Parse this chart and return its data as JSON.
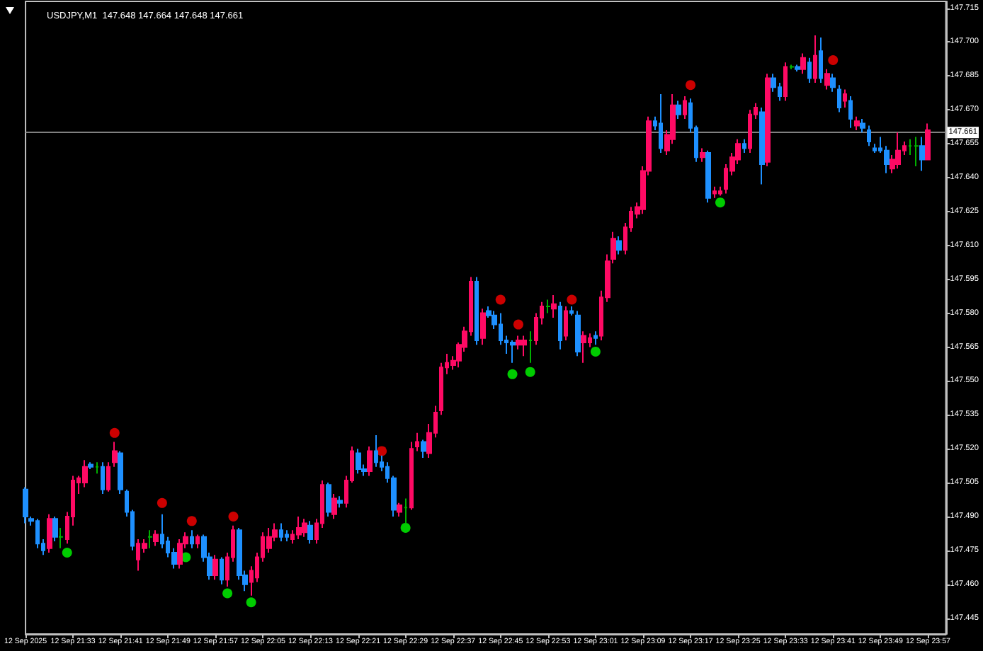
{
  "chart_data": {
    "type": "candlestick",
    "title": "USDJPY,M1  147.648 147.664 147.648 147.661",
    "x": [
      "2025-09-12T21:25",
      "2025-09-12T21:26",
      "2025-09-12T21:27",
      "2025-09-12T21:28",
      "2025-09-12T21:29",
      "2025-09-12T21:30",
      "2025-09-12T21:31",
      "2025-09-12T21:32",
      "2025-09-12T21:33",
      "2025-09-12T21:34",
      "2025-09-12T21:35",
      "2025-09-12T21:36",
      "2025-09-12T21:37",
      "2025-09-12T21:38",
      "2025-09-12T21:39",
      "2025-09-12T21:40",
      "2025-09-12T21:41",
      "2025-09-12T21:42",
      "2025-09-12T21:43",
      "2025-09-12T21:44",
      "2025-09-12T21:45",
      "2025-09-12T21:46",
      "2025-09-12T21:47",
      "2025-09-12T21:48",
      "2025-09-12T21:49",
      "2025-09-12T21:50",
      "2025-09-12T21:51",
      "2025-09-12T21:52",
      "2025-09-12T21:53",
      "2025-09-12T21:54",
      "2025-09-12T21:55",
      "2025-09-12T21:56",
      "2025-09-12T21:57",
      "2025-09-12T21:58",
      "2025-09-12T21:59",
      "2025-09-12T22:00",
      "2025-09-12T22:01",
      "2025-09-12T22:02",
      "2025-09-12T22:03",
      "2025-09-12T22:04",
      "2025-09-12T22:05",
      "2025-09-12T22:06",
      "2025-09-12T22:07",
      "2025-09-12T22:08",
      "2025-09-12T22:09",
      "2025-09-12T22:10",
      "2025-09-12T22:11",
      "2025-09-12T22:12",
      "2025-09-12T22:13",
      "2025-09-12T22:14",
      "2025-09-12T22:15",
      "2025-09-12T22:16",
      "2025-09-12T22:17",
      "2025-09-12T22:18",
      "2025-09-12T22:19",
      "2025-09-12T22:20",
      "2025-09-12T22:21",
      "2025-09-12T22:22",
      "2025-09-12T22:23",
      "2025-09-12T22:24",
      "2025-09-12T22:25",
      "2025-09-12T22:26",
      "2025-09-12T22:27",
      "2025-09-12T22:28",
      "2025-09-12T22:29",
      "2025-09-12T22:30",
      "2025-09-12T22:31",
      "2025-09-12T22:32",
      "2025-09-12T22:33",
      "2025-09-12T22:34",
      "2025-09-12T22:35",
      "2025-09-12T22:36",
      "2025-09-12T22:37",
      "2025-09-12T22:38",
      "2025-09-12T22:39",
      "2025-09-12T22:40",
      "2025-09-12T22:41",
      "2025-09-12T22:42",
      "2025-09-12T22:43",
      "2025-09-12T22:44",
      "2025-09-12T22:45",
      "2025-09-12T22:46",
      "2025-09-12T22:47",
      "2025-09-12T22:48",
      "2025-09-12T22:49",
      "2025-09-12T22:50",
      "2025-09-12T22:51",
      "2025-09-12T22:52",
      "2025-09-12T22:53",
      "2025-09-12T22:54",
      "2025-09-12T22:55",
      "2025-09-12T22:56",
      "2025-09-12T22:57",
      "2025-09-12T22:58",
      "2025-09-12T22:59",
      "2025-09-12T23:00",
      "2025-09-12T23:01",
      "2025-09-12T23:02",
      "2025-09-12T23:03",
      "2025-09-12T23:04",
      "2025-09-12T23:05",
      "2025-09-12T23:06",
      "2025-09-12T23:07",
      "2025-09-12T23:08",
      "2025-09-12T23:09",
      "2025-09-12T23:10",
      "2025-09-12T23:11",
      "2025-09-12T23:12",
      "2025-09-12T23:13",
      "2025-09-12T23:14",
      "2025-09-12T23:15",
      "2025-09-12T23:16",
      "2025-09-12T23:17",
      "2025-09-12T23:18",
      "2025-09-12T23:19",
      "2025-09-12T23:20",
      "2025-09-12T23:21",
      "2025-09-12T23:22",
      "2025-09-12T23:23",
      "2025-09-12T23:24",
      "2025-09-12T23:25",
      "2025-09-12T23:26",
      "2025-09-12T23:27",
      "2025-09-12T23:28",
      "2025-09-12T23:29",
      "2025-09-12T23:30",
      "2025-09-12T23:31",
      "2025-09-12T23:32",
      "2025-09-12T23:33",
      "2025-09-12T23:34",
      "2025-09-12T23:35",
      "2025-09-12T23:36",
      "2025-09-12T23:37",
      "2025-09-12T23:38",
      "2025-09-12T23:39",
      "2025-09-12T23:40",
      "2025-09-12T23:41",
      "2025-09-12T23:42",
      "2025-09-12T23:43",
      "2025-09-12T23:44",
      "2025-09-12T23:45",
      "2025-09-12T23:46",
      "2025-09-12T23:47",
      "2025-09-12T23:48",
      "2025-09-12T23:49",
      "2025-09-12T23:50",
      "2025-09-12T23:51",
      "2025-09-12T23:52",
      "2025-09-12T23:53",
      "2025-09-12T23:54",
      "2025-09-12T23:55",
      "2025-09-12T23:56",
      "2025-09-12T23:57"
    ],
    "ohlc": [
      [
        147.502,
        147.503,
        147.487,
        147.49
      ],
      [
        147.489,
        147.49,
        147.486,
        147.488
      ],
      [
        147.488,
        147.489,
        147.476,
        147.478
      ],
      [
        147.478,
        147.48,
        147.473,
        147.475
      ],
      [
        147.476,
        147.491,
        147.474,
        147.489
      ],
      [
        147.489,
        147.49,
        147.479,
        147.481
      ],
      [
        147.481,
        147.485,
        147.476,
        147.481
      ],
      [
        147.48,
        147.492,
        147.478,
        147.49
      ],
      [
        147.49,
        147.508,
        147.486,
        147.506
      ],
      [
        147.505,
        147.508,
        147.5,
        147.507
      ],
      [
        147.505,
        147.515,
        147.503,
        147.512
      ],
      [
        147.513,
        147.514,
        147.511,
        147.512
      ],
      [
        147.512,
        147.514,
        147.509,
        147.512
      ],
      [
        147.512,
        147.514,
        147.5,
        147.502
      ],
      [
        147.502,
        147.514,
        147.501,
        147.512
      ],
      [
        147.514,
        147.523,
        147.512,
        147.519
      ],
      [
        147.518,
        147.519,
        147.5,
        147.502
      ],
      [
        147.501,
        147.502,
        147.49,
        147.492
      ],
      [
        147.492,
        147.493,
        147.475,
        147.477
      ],
      [
        147.471,
        147.48,
        147.466,
        147.478
      ],
      [
        147.476,
        147.48,
        147.474,
        147.478
      ],
      [
        147.481,
        147.484,
        147.476,
        147.481
      ],
      [
        147.479,
        147.484,
        147.477,
        147.482
      ],
      [
        147.482,
        147.491,
        147.476,
        147.478
      ],
      [
        147.479,
        147.481,
        147.472,
        147.474
      ],
      [
        147.474,
        147.476,
        147.467,
        147.469
      ],
      [
        147.469,
        147.48,
        147.467,
        147.478
      ],
      [
        147.478,
        147.483,
        147.476,
        147.481
      ],
      [
        147.481,
        147.484,
        147.476,
        147.478
      ],
      [
        147.478,
        147.482,
        147.476,
        147.481
      ],
      [
        147.481,
        147.482,
        147.47,
        147.472
      ],
      [
        147.472,
        147.474,
        147.462,
        147.464
      ],
      [
        147.464,
        147.473,
        147.462,
        147.471
      ],
      [
        147.471,
        147.472,
        147.46,
        147.462
      ],
      [
        147.462,
        147.474,
        147.459,
        147.472
      ],
      [
        147.472,
        147.486,
        147.47,
        147.484
      ],
      [
        147.484,
        147.485,
        147.462,
        147.464
      ],
      [
        147.464,
        147.466,
        147.457,
        147.46
      ],
      [
        147.461,
        147.468,
        147.455,
        147.466
      ],
      [
        147.463,
        147.474,
        147.461,
        147.472
      ],
      [
        147.472,
        147.483,
        147.47,
        147.481
      ],
      [
        147.476,
        147.485,
        147.474,
        147.481
      ],
      [
        147.481,
        147.487,
        147.479,
        147.484
      ],
      [
        147.484,
        147.487,
        147.479,
        147.481
      ],
      [
        147.482,
        147.484,
        147.479,
        147.481
      ],
      [
        147.48,
        147.484,
        147.478,
        147.482
      ],
      [
        147.482,
        147.49,
        147.48,
        147.485
      ],
      [
        147.483,
        147.489,
        147.481,
        147.487
      ],
      [
        147.486,
        147.488,
        147.478,
        147.48
      ],
      [
        147.48,
        147.489,
        147.478,
        147.487
      ],
      [
        147.487,
        147.506,
        147.485,
        147.504
      ],
      [
        147.504,
        147.505,
        147.49,
        147.492
      ],
      [
        147.491,
        147.5,
        147.489,
        147.498
      ],
      [
        147.497,
        147.499,
        147.494,
        147.496
      ],
      [
        147.496,
        147.508,
        147.494,
        147.506
      ],
      [
        147.506,
        147.521,
        147.505,
        147.519
      ],
      [
        147.518,
        147.52,
        147.509,
        147.511
      ],
      [
        147.511,
        147.513,
        147.508,
        147.51
      ],
      [
        147.51,
        147.521,
        147.508,
        147.519
      ],
      [
        147.519,
        147.526,
        147.512,
        147.514
      ],
      [
        147.514,
        147.517,
        147.51,
        147.512
      ],
      [
        147.512,
        147.514,
        147.505,
        147.507
      ],
      [
        147.507,
        147.508,
        147.49,
        147.493
      ],
      [
        147.492,
        147.496,
        147.49,
        147.495
      ],
      [
        147.494,
        147.498,
        147.487,
        147.494
      ],
      [
        147.494,
        147.523,
        147.493,
        147.52
      ],
      [
        147.521,
        147.527,
        147.519,
        147.523
      ],
      [
        147.523,
        147.524,
        147.516,
        147.519
      ],
      [
        147.518,
        147.531,
        147.516,
        147.527
      ],
      [
        147.527,
        147.539,
        147.525,
        147.536
      ],
      [
        147.537,
        147.558,
        147.535,
        147.556
      ],
      [
        147.556,
        147.562,
        147.553,
        147.558
      ],
      [
        147.557,
        147.561,
        147.555,
        147.559
      ],
      [
        147.559,
        147.567,
        147.556,
        147.566
      ],
      [
        147.565,
        147.574,
        147.563,
        147.572
      ],
      [
        147.572,
        147.596,
        147.57,
        147.594
      ],
      [
        147.594,
        147.596,
        147.566,
        147.568
      ],
      [
        147.569,
        147.582,
        147.566,
        147.58
      ],
      [
        147.581,
        147.583,
        147.578,
        147.579
      ],
      [
        147.579,
        147.581,
        147.573,
        147.575
      ],
      [
        147.575,
        147.58,
        147.566,
        147.568
      ],
      [
        147.568,
        147.57,
        147.562,
        147.567
      ],
      [
        147.567,
        147.568,
        147.558,
        147.566
      ],
      [
        147.566,
        147.57,
        147.564,
        147.568
      ],
      [
        147.566,
        147.57,
        147.561,
        147.568
      ],
      [
        147.568,
        147.572,
        147.558,
        147.568
      ],
      [
        147.568,
        147.58,
        147.566,
        147.578
      ],
      [
        147.578,
        147.585,
        147.575,
        147.583
      ],
      [
        147.583,
        147.586,
        147.58,
        147.583
      ],
      [
        147.582,
        147.588,
        147.578,
        147.584
      ],
      [
        147.583,
        147.585,
        147.564,
        147.568
      ],
      [
        147.57,
        147.583,
        147.568,
        147.581
      ],
      [
        147.581,
        147.583,
        147.579,
        147.58
      ],
      [
        147.579,
        147.581,
        147.561,
        147.563
      ],
      [
        147.567,
        147.572,
        147.558,
        147.57
      ],
      [
        147.567,
        147.571,
        147.565,
        147.569
      ],
      [
        147.57,
        147.572,
        147.566,
        147.569
      ],
      [
        147.57,
        147.59,
        147.568,
        147.587
      ],
      [
        147.587,
        147.606,
        147.585,
        147.603
      ],
      [
        147.604,
        147.616,
        147.602,
        147.613
      ],
      [
        147.612,
        147.614,
        147.606,
        147.608
      ],
      [
        147.608,
        147.62,
        147.606,
        147.618
      ],
      [
        147.618,
        147.627,
        147.616,
        147.625
      ],
      [
        147.624,
        147.629,
        147.622,
        147.627
      ],
      [
        147.626,
        147.645,
        147.624,
        147.643
      ],
      [
        147.643,
        147.667,
        147.641,
        147.665
      ],
      [
        147.665,
        147.667,
        147.661,
        147.663
      ],
      [
        147.664,
        147.677,
        147.651,
        147.653
      ],
      [
        147.652,
        147.661,
        147.65,
        147.659
      ],
      [
        147.657,
        147.677,
        147.655,
        147.672
      ],
      [
        147.672,
        147.674,
        147.666,
        147.668
      ],
      [
        147.668,
        147.676,
        147.666,
        147.674
      ],
      [
        147.673,
        147.675,
        147.66,
        147.662
      ],
      [
        147.662,
        147.663,
        147.647,
        147.649
      ],
      [
        147.649,
        147.653,
        147.647,
        147.651
      ],
      [
        147.651,
        147.652,
        147.629,
        147.631
      ],
      [
        147.633,
        147.636,
        147.631,
        147.634
      ],
      [
        147.633,
        147.636,
        147.632,
        147.634
      ],
      [
        147.635,
        147.646,
        147.633,
        147.644
      ],
      [
        147.643,
        147.651,
        147.641,
        147.649
      ],
      [
        147.648,
        147.657,
        147.646,
        147.655
      ],
      [
        147.655,
        147.657,
        147.651,
        147.653
      ],
      [
        147.653,
        147.67,
        147.651,
        147.668
      ],
      [
        147.668,
        147.673,
        147.666,
        147.671
      ],
      [
        147.669,
        147.671,
        147.637,
        147.646
      ],
      [
        147.647,
        147.686,
        147.645,
        147.684
      ],
      [
        147.684,
        147.686,
        147.678,
        147.68
      ],
      [
        147.68,
        147.682,
        147.674,
        147.676
      ],
      [
        147.676,
        147.691,
        147.674,
        147.689
      ],
      [
        147.689,
        147.69,
        147.688,
        147.689
      ],
      [
        147.689,
        147.69,
        147.687,
        147.688
      ],
      [
        147.688,
        147.695,
        147.686,
        147.693
      ],
      [
        147.691,
        147.693,
        147.682,
        147.684
      ],
      [
        147.684,
        147.703,
        147.682,
        147.694
      ],
      [
        147.696,
        147.702,
        147.682,
        147.684
      ],
      [
        147.681,
        147.688,
        147.679,
        147.686
      ],
      [
        147.684,
        147.686,
        147.678,
        147.68
      ],
      [
        147.679,
        147.681,
        147.669,
        147.671
      ],
      [
        147.674,
        147.679,
        147.671,
        147.677
      ],
      [
        147.674,
        147.676,
        147.662,
        147.666
      ],
      [
        147.663,
        147.667,
        147.661,
        147.665
      ],
      [
        147.664,
        147.666,
        147.66,
        147.662
      ],
      [
        147.661,
        147.663,
        147.654,
        147.656
      ],
      [
        147.653,
        147.655,
        147.651,
        147.652
      ],
      [
        147.653,
        147.658,
        147.651,
        147.652
      ],
      [
        147.652,
        147.654,
        147.642,
        147.646
      ],
      [
        147.644,
        147.65,
        147.642,
        147.648
      ],
      [
        147.646,
        147.66,
        147.644,
        147.652
      ],
      [
        147.652,
        147.656,
        147.65,
        147.654
      ],
      [
        147.654,
        147.657,
        147.65,
        147.654
      ],
      [
        147.654,
        147.658,
        147.645,
        147.654
      ],
      [
        147.654,
        147.658,
        147.643,
        147.648
      ],
      [
        147.648,
        147.664,
        147.648,
        147.661
      ]
    ],
    "colors": [
      "#1e90ff",
      "#1e90ff",
      "#1e90ff",
      "#1e90ff",
      "#ff0a64",
      "#1e90ff",
      "#00b000",
      "#ff0a64",
      "#ff0a64",
      "#ff0a64",
      "#ff0a64",
      "#1e90ff",
      "#00b000",
      "#1e90ff",
      "#ff0a64",
      "#ff0a64",
      "#1e90ff",
      "#1e90ff",
      "#1e90ff",
      "#ff0a64",
      "#ff0a64",
      "#00b000",
      "#ff0a64",
      "#1e90ff",
      "#1e90ff",
      "#1e90ff",
      "#ff0a64",
      "#ff0a64",
      "#1e90ff",
      "#ff0a64",
      "#1e90ff",
      "#1e90ff",
      "#ff0a64",
      "#1e90ff",
      "#ff0a64",
      "#ff0a64",
      "#1e90ff",
      "#1e90ff",
      "#ff0a64",
      "#ff0a64",
      "#ff0a64",
      "#ff0a64",
      "#ff0a64",
      "#1e90ff",
      "#1e90ff",
      "#ff0a64",
      "#ff0a64",
      "#ff0a64",
      "#1e90ff",
      "#ff0a64",
      "#ff0a64",
      "#1e90ff",
      "#ff0a64",
      "#1e90ff",
      "#ff0a64",
      "#ff0a64",
      "#1e90ff",
      "#1e90ff",
      "#ff0a64",
      "#1e90ff",
      "#1e90ff",
      "#1e90ff",
      "#1e90ff",
      "#ff0a64",
      "#00b000",
      "#ff0a64",
      "#ff0a64",
      "#1e90ff",
      "#ff0a64",
      "#ff0a64",
      "#ff0a64",
      "#ff0a64",
      "#ff0a64",
      "#ff0a64",
      "#ff0a64",
      "#ff0a64",
      "#1e90ff",
      "#ff0a64",
      "#1e90ff",
      "#1e90ff",
      "#1e90ff",
      "#1e90ff",
      "#1e90ff",
      "#ff0a64",
      "#ff0a64",
      "#00b000",
      "#ff0a64",
      "#ff0a64",
      "#00b000",
      "#ff0a64",
      "#1e90ff",
      "#ff0a64",
      "#1e90ff",
      "#1e90ff",
      "#ff0a64",
      "#ff0a64",
      "#1e90ff",
      "#ff0a64",
      "#ff0a64",
      "#ff0a64",
      "#1e90ff",
      "#ff0a64",
      "#ff0a64",
      "#ff0a64",
      "#ff0a64",
      "#ff0a64",
      "#1e90ff",
      "#1e90ff",
      "#ff0a64",
      "#ff0a64",
      "#1e90ff",
      "#ff0a64",
      "#1e90ff",
      "#1e90ff",
      "#ff0a64",
      "#1e90ff",
      "#ff0a64",
      "#ff0a64",
      "#ff0a64",
      "#ff0a64",
      "#ff0a64",
      "#1e90ff",
      "#ff0a64",
      "#ff0a64",
      "#1e90ff",
      "#ff0a64",
      "#1e90ff",
      "#1e90ff",
      "#ff0a64",
      "#00b000",
      "#1e90ff",
      "#ff0a64",
      "#1e90ff",
      "#ff0a64",
      "#1e90ff",
      "#ff0a64",
      "#1e90ff",
      "#1e90ff",
      "#ff0a64",
      "#1e90ff",
      "#ff0a64",
      "#1e90ff",
      "#1e90ff",
      "#1e90ff",
      "#1e90ff",
      "#1e90ff",
      "#ff0a64",
      "#ff0a64",
      "#ff0a64",
      "#00b000",
      "#00b000",
      "#1e90ff",
      "#ff0a64"
    ],
    "series": [
      {
        "type": "scatter",
        "color": "#ff0000",
        "x": [
          "2025-09-12T21:40",
          "2025-09-12T21:48",
          "2025-09-12T21:53",
          "2025-09-12T22:00",
          "2025-09-12T22:25",
          "2025-09-12T22:45",
          "2025-09-12T22:48",
          "2025-09-12T22:57",
          "2025-09-12T23:17",
          "2025-09-12T23:41"
        ],
        "values": [
          147.527,
          147.496,
          147.488,
          147.49,
          147.519,
          147.586,
          147.575,
          147.586,
          147.681,
          147.692
        ]
      },
      {
        "type": "scatter",
        "color": "#00ff00",
        "x": [
          "2025-09-12T21:32",
          "2025-09-12T21:52",
          "2025-09-12T21:59",
          "2025-09-12T22:03",
          "2025-09-12T22:29",
          "2025-09-12T22:47",
          "2025-09-12T22:50",
          "2025-09-12T23:01",
          "2025-09-12T23:22"
        ],
        "values": [
          147.474,
          147.472,
          147.456,
          147.452,
          147.485,
          147.553,
          147.554,
          147.563,
          147.629
        ]
      }
    ],
    "marker": "circle",
    "xlim": [
      "2025-09-12T21:25",
      "2025-09-13T00:00"
    ],
    "xticks": [
      {
        "value": "2025-09-12T21:25",
        "label": "12 Sep 2025"
      },
      {
        "value": "2025-09-12T21:33",
        "label": "12 Sep 21:33"
      },
      {
        "value": "2025-09-12T21:41",
        "label": "12 Sep 21:41"
      },
      {
        "value": "2025-09-12T21:49",
        "label": "12 Sep 21:49"
      },
      {
        "value": "2025-09-12T21:57",
        "label": "12 Sep 21:57"
      },
      {
        "value": "2025-09-12T22:05",
        "label": "12 Sep 22:05"
      },
      {
        "value": "2025-09-12T22:13",
        "label": "12 Sep 22:13"
      },
      {
        "value": "2025-09-12T22:21",
        "label": "12 Sep 22:21"
      },
      {
        "value": "2025-09-12T22:29",
        "label": "12 Sep 22:29"
      },
      {
        "value": "2025-09-12T22:37",
        "label": "12 Sep 22:37"
      },
      {
        "value": "2025-09-12T22:45",
        "label": "12 Sep 22:45"
      },
      {
        "value": "2025-09-12T22:53",
        "label": "12 Sep 22:53"
      },
      {
        "value": "2025-09-12T23:01",
        "label": "12 Sep 23:01"
      },
      {
        "value": "2025-09-12T23:09",
        "label": "12 Sep 23:09"
      },
      {
        "value": "2025-09-12T23:17",
        "label": "12 Sep 23:17"
      },
      {
        "value": "2025-09-12T23:25",
        "label": "12 Sep 23:25"
      },
      {
        "value": "2025-09-12T23:33",
        "label": "12 Sep 23:33"
      },
      {
        "value": "2025-09-12T23:41",
        "label": "12 Sep 23:41"
      },
      {
        "value": "2025-09-12T23:49",
        "label": "12 Sep 23:49"
      },
      {
        "value": "2025-09-12T23:57",
        "label": "12 Sep 23:57"
      }
    ],
    "ylim": [
      147.438,
      147.718
    ],
    "yticks": [
      147.445,
      {
        "value": 147.46,
        "label": "147.460"
      },
      147.475,
      {
        "value": 147.49,
        "label": "147.490"
      },
      147.505,
      {
        "value": 147.52,
        "label": "147.520"
      },
      147.535,
      {
        "value": 147.55,
        "label": "147.550"
      },
      147.565,
      {
        "value": 147.58,
        "label": "147.580"
      },
      147.595,
      {
        "value": 147.61,
        "label": "147.610"
      },
      147.625,
      {
        "value": 147.64,
        "label": "147.640"
      },
      147.655,
      {
        "value": 147.67,
        "label": "147.670"
      },
      147.685,
      {
        "value": 147.7,
        "label": "147.700"
      },
      147.715
    ],
    "ref_lines": [
      {
        "axis": "y",
        "value": 147.661,
        "label": "147.661",
        "color": "#808080"
      }
    ],
    "grid": false
  }
}
